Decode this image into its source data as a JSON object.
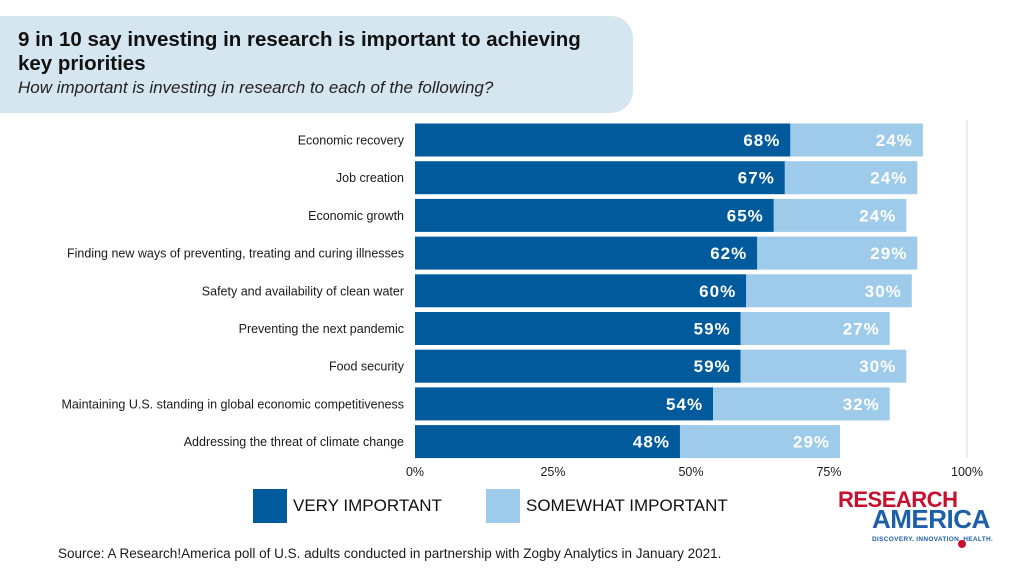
{
  "header": {
    "title": "9 in 10 say investing in research is important to achieving key priorities",
    "subtitle": "How important is investing in research to each of the following?"
  },
  "chart_data": {
    "type": "bar",
    "orientation": "horizontal",
    "stacked": true,
    "categories": [
      "Economic recovery",
      "Job creation",
      "Economic growth",
      "Finding new ways of preventing, treating and curing illnesses",
      "Safety and availability of clean water",
      "Preventing the next pandemic",
      "Food security",
      "Maintaining U.S. standing in global economic competitiveness",
      "Addressing the threat of climate change"
    ],
    "series": [
      {
        "name": "VERY IMPORTANT",
        "color": "#005a9c",
        "values": [
          68,
          67,
          65,
          62,
          60,
          59,
          59,
          54,
          48
        ]
      },
      {
        "name": "SOMEWHAT IMPORTANT",
        "color": "#9ecbea",
        "values": [
          24,
          24,
          24,
          29,
          30,
          27,
          30,
          32,
          29
        ]
      }
    ],
    "xlim": [
      0,
      100
    ],
    "x_ticks": [
      "0%",
      "25%",
      "50%",
      "75%",
      "100%"
    ],
    "value_suffix": "%",
    "grid": "vertical line at 100% only",
    "legend_position": "bottom"
  },
  "source": "Source:  A Research!America poll of U.S. adults conducted in partnership with Zogby Analytics in January 2021.",
  "logo": {
    "top": "RESEARCH",
    "bottom": "AMERICA",
    "tagline": "DISCOVERY. INNOVATION. HEALTH."
  }
}
